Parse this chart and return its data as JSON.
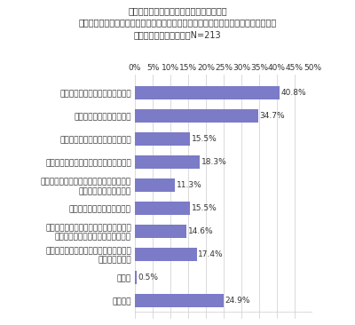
{
  "title_line1": "『スポーツ』ジャンルを推している方へ。",
  "title_line2": "コロナによる自粛中と緩和後を比べて、推し活をするうえで感じた変化は何ですか。",
  "title_line3": "（お答えはいくつでも）N=213",
  "categories": [
    "試合会場でのファンの声出し解禁",
    "現地観戦できる試合の増加",
    "公式主催のファンイベントの増加",
    "地方の試合など遠征に行きやすくなった",
    "グッズを買うためなどチケットがなくても\n会場へ行きやすくなった",
    "公式グッズの種類が増加した",
    "現地での応援が増え、公式グッズ以外に\n手作りグッズ関連の購入品が増えた",
    "同じようにスポーツ選手を推すファンが\n増えたと感じる",
    "その他",
    "特になし"
  ],
  "values": [
    40.8,
    34.7,
    15.5,
    18.3,
    11.3,
    15.5,
    14.6,
    17.4,
    0.5,
    24.9
  ],
  "bar_color": "#7b7bc8",
  "label_color": "#333333",
  "background_color": "#ffffff",
  "xlim": [
    0,
    50
  ],
  "xticks": [
    0,
    5,
    10,
    15,
    20,
    25,
    30,
    35,
    40,
    45,
    50
  ],
  "xtick_labels": [
    "0%",
    "5%",
    "10%",
    "15%",
    "20%",
    "25%",
    "30%",
    "35%",
    "40%",
    "45%",
    "50%"
  ],
  "bar_height": 0.6,
  "title_fontsize": 7,
  "tick_fontsize": 6.5,
  "value_fontsize": 6.5,
  "category_fontsize": 6.5
}
